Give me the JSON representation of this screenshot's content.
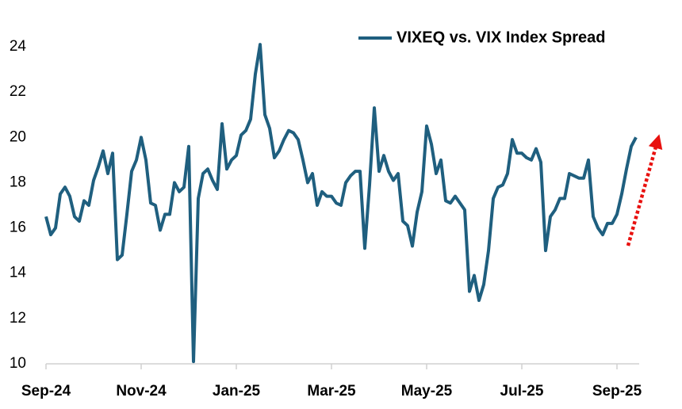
{
  "chart_data": {
    "type": "line",
    "categories": [
      "Sep-24",
      null,
      null,
      null,
      null,
      null,
      null,
      null,
      null,
      null,
      null,
      null,
      null,
      null,
      null,
      null,
      null,
      null,
      null,
      null,
      "Nov-24",
      null,
      null,
      null,
      null,
      null,
      null,
      null,
      null,
      null,
      null,
      null,
      null,
      null,
      null,
      null,
      null,
      null,
      null,
      null,
      "Jan-25",
      null,
      null,
      null,
      null,
      null,
      null,
      null,
      null,
      null,
      null,
      null,
      null,
      null,
      null,
      null,
      null,
      null,
      null,
      null,
      "Mar-25",
      null,
      null,
      null,
      null,
      null,
      null,
      null,
      null,
      null,
      null,
      null,
      null,
      null,
      null,
      null,
      null,
      null,
      null,
      null,
      "May-25",
      null,
      null,
      null,
      null,
      null,
      null,
      null,
      null,
      null,
      null,
      null,
      null,
      null,
      null,
      null,
      null,
      null,
      null,
      null,
      "Jul-25",
      null,
      null,
      null,
      null,
      null,
      null,
      null,
      null,
      null,
      null,
      null,
      null,
      null,
      null,
      null,
      null,
      null,
      null,
      null,
      "Sep-25",
      null,
      null,
      null,
      null
    ],
    "series": [
      {
        "name": "VIXEQ vs. VIX Index Spread",
        "color": "#1f5f7f",
        "values": [
          16.5,
          15.7,
          16.0,
          17.5,
          17.8,
          17.4,
          16.5,
          16.3,
          17.2,
          17.0,
          18.1,
          18.7,
          19.4,
          18.4,
          19.3,
          14.6,
          14.8,
          16.6,
          18.5,
          19.0,
          20.0,
          19.0,
          17.1,
          17.0,
          15.9,
          16.6,
          16.6,
          18.0,
          17.6,
          17.8,
          19.6,
          10.1,
          17.3,
          18.4,
          18.6,
          18.1,
          17.7,
          20.6,
          18.6,
          19.0,
          19.2,
          20.1,
          20.3,
          20.8,
          22.8,
          24.1,
          21.0,
          20.4,
          19.1,
          19.4,
          19.9,
          20.3,
          20.2,
          19.9,
          19.0,
          18.0,
          18.4,
          17.0,
          17.6,
          17.4,
          17.4,
          17.1,
          17.0,
          18.0,
          18.3,
          18.5,
          18.5,
          15.1,
          17.9,
          21.3,
          18.5,
          19.2,
          18.5,
          18.1,
          18.4,
          16.3,
          16.1,
          15.2,
          16.7,
          17.6,
          20.5,
          19.7,
          18.4,
          19.0,
          17.2,
          17.1,
          17.4,
          17.1,
          16.8,
          13.2,
          13.9,
          12.8,
          13.5,
          15.0,
          17.3,
          17.8,
          17.9,
          18.4,
          19.9,
          19.3,
          19.3,
          19.1,
          19.0,
          19.5,
          18.9,
          15.0,
          16.5,
          16.8,
          17.3,
          17.3,
          18.4,
          18.3,
          18.2,
          18.2,
          19.0,
          16.5,
          16.0,
          15.7,
          16.2,
          16.2,
          16.6,
          17.5,
          18.6,
          19.6,
          20.0
        ]
      }
    ],
    "ylim": [
      10,
      25
    ],
    "yticks": [
      10,
      12,
      14,
      16,
      18,
      20,
      22,
      24
    ],
    "legend": "top-right"
  }
}
